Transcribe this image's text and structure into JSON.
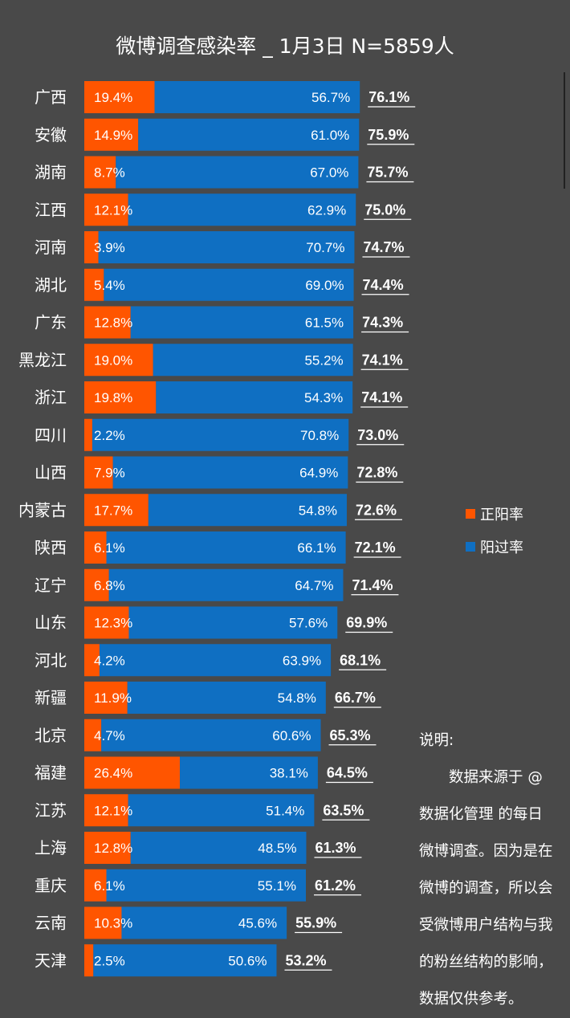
{
  "chart_data": {
    "type": "bar",
    "stacked": true,
    "orientation": "horizontal",
    "title": "微博调查感染率 _ 1月3日 N=5859人",
    "categories": [
      "广西",
      "安徽",
      "湖南",
      "江西",
      "河南",
      "湖北",
      "广东",
      "黑龙江",
      "浙江",
      "四川",
      "山西",
      "内蒙古",
      "陕西",
      "辽宁",
      "山东",
      "河北",
      "新疆",
      "北京",
      "福建",
      "江苏",
      "上海",
      "重庆",
      "云南",
      "天津"
    ],
    "series": [
      {
        "name": "正阳率",
        "color": "#FF5500",
        "values": [
          19.4,
          14.9,
          8.7,
          12.1,
          3.9,
          5.4,
          12.8,
          19.0,
          19.8,
          2.2,
          7.9,
          17.7,
          6.1,
          6.8,
          12.3,
          4.2,
          11.9,
          4.7,
          26.4,
          12.1,
          12.8,
          6.1,
          10.3,
          2.5
        ]
      },
      {
        "name": "阳过率",
        "color": "#0F6FC2",
        "values": [
          56.7,
          61.0,
          67.0,
          62.9,
          70.7,
          69.0,
          61.5,
          55.2,
          54.3,
          70.8,
          64.9,
          54.8,
          66.1,
          64.7,
          57.6,
          63.9,
          54.8,
          60.6,
          38.1,
          51.4,
          48.5,
          55.1,
          45.6,
          50.6
        ]
      }
    ],
    "totals": [
      "76.1%",
      "75.9%",
      "75.7%",
      "75.0%",
      "74.7%",
      "74.4%",
      "74.3%",
      "74.1%",
      "74.1%",
      "73.0%",
      "72.8%",
      "72.6%",
      "72.1%",
      "71.4%",
      "69.9%",
      "68.1%",
      "66.7%",
      "65.3%",
      "64.5%",
      "63.5%",
      "61.3%",
      "61.2%",
      "55.9%",
      "53.2%"
    ],
    "legend_position": "right",
    "grid": false,
    "xlim": [
      0,
      80
    ]
  },
  "note": {
    "heading": "说明:",
    "body": "数据来源于 @数据化管理 的每日微博调查。因为是在微博的调查，所以会受微博用户结构与我的粉丝结构的影响，数据仅供参考。"
  }
}
